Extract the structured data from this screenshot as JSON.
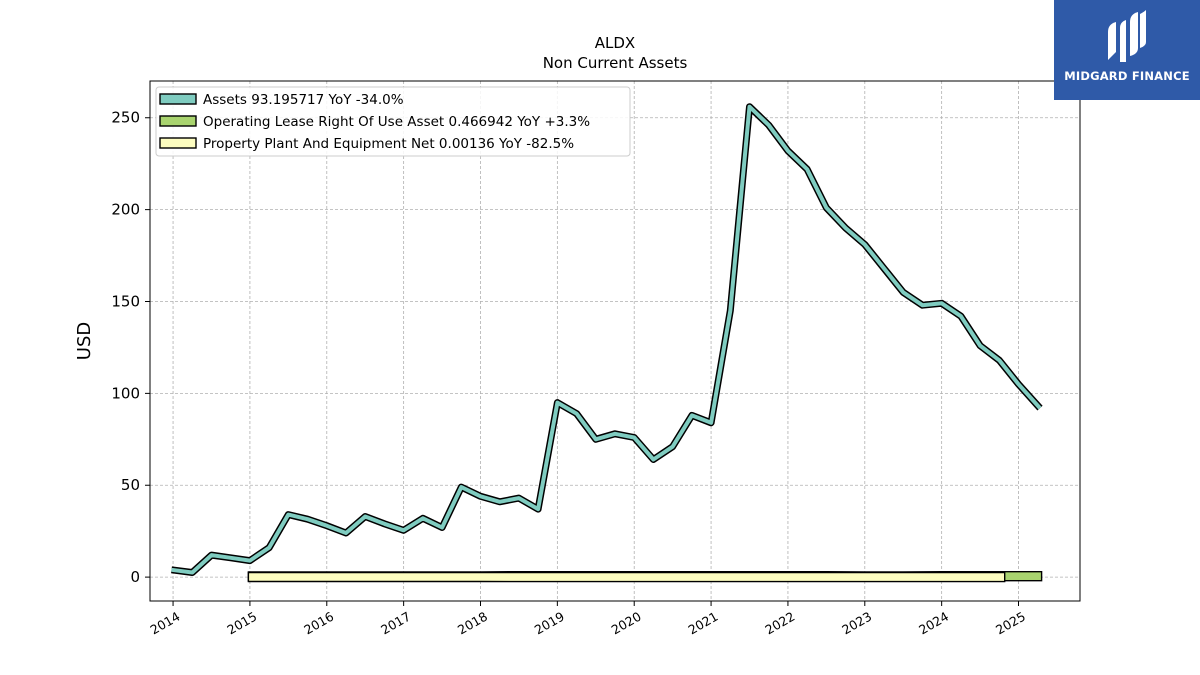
{
  "chart_data": {
    "type": "line",
    "title": "ALDX",
    "subtitle": "Non Current  Assets",
    "ylabel": "USD",
    "xlabel": "",
    "xlim": [
      2013.7,
      2025.8
    ],
    "ylim": [
      -13,
      270
    ],
    "yticks": [
      0,
      50,
      100,
      150,
      200,
      250
    ],
    "xticks": [
      2014,
      2015,
      2016,
      2017,
      2018,
      2019,
      2020,
      2021,
      2022,
      2023,
      2024,
      2025
    ],
    "grid": true,
    "legend_position": "top-left",
    "series": [
      {
        "name": "Assets  93.195717 YoY -34.0%",
        "color": "#7fccc0",
        "x": [
          2013.98,
          2014.25,
          2014.5,
          2014.75,
          2015.0,
          2015.25,
          2015.5,
          2015.75,
          2016.0,
          2016.25,
          2016.5,
          2016.75,
          2017.0,
          2017.25,
          2017.5,
          2017.75,
          2018.0,
          2018.25,
          2018.5,
          2018.75,
          2019.0,
          2019.25,
          2019.5,
          2019.75,
          2020.0,
          2020.25,
          2020.5,
          2020.75,
          2021.0,
          2021.25,
          2021.5,
          2021.75,
          2022.0,
          2022.25,
          2022.5,
          2022.75,
          2023.0,
          2023.25,
          2023.5,
          2023.75,
          2024.0,
          2024.25,
          2024.5,
          2024.75,
          2025.0,
          2025.28
        ],
        "values": [
          4,
          2.5,
          12,
          10.5,
          9,
          16,
          34,
          31.5,
          28,
          24,
          33,
          29,
          25.5,
          32,
          27,
          49,
          44,
          41,
          43,
          37,
          95,
          89,
          75,
          78,
          76,
          64,
          71,
          88,
          84,
          145,
          256,
          246,
          232,
          222,
          201,
          190,
          181,
          168,
          155,
          148,
          149,
          142,
          126,
          118,
          105,
          92
        ]
      },
      {
        "name": "Operating Lease Right Of Use Asset  0.466942 YoY +3.3%",
        "color": "#a9d46f",
        "x": [
          2014.98,
          2015.5,
          2016.0,
          2016.5,
          2017.0,
          2017.5,
          2018.0,
          2018.5,
          2019.0,
          2019.5,
          2020.0,
          2020.5,
          2021.0,
          2021.5,
          2022.0,
          2022.5,
          2023.0,
          2023.5,
          2024.0,
          2024.5,
          2024.82,
          2025.0,
          2025.3
        ],
        "values": [
          0.4,
          0.4,
          0.4,
          0.4,
          0.4,
          0.4,
          0.4,
          0.5,
          0.5,
          0.5,
          0.5,
          0.5,
          0.5,
          0.5,
          0.5,
          0.5,
          0.4,
          0.4,
          0.5,
          0.5,
          0.5,
          0.5,
          0.5
        ]
      },
      {
        "name": "Property Plant And Equipment Net  0.00136 YoY -82.5%",
        "color": "#fdfdc0",
        "x": [
          2014.98,
          2015.5,
          2016.0,
          2016.5,
          2017.0,
          2017.5,
          2018.0,
          2018.5,
          2019.0,
          2019.5,
          2020.0,
          2020.5,
          2021.0,
          2021.5,
          2022.0,
          2022.5,
          2023.0,
          2023.5,
          2024.0,
          2024.5,
          2024.82
        ],
        "values": [
          0.06,
          0.05,
          0.05,
          0.05,
          0.04,
          0.04,
          0.04,
          0.03,
          0.03,
          0.03,
          0.03,
          0.02,
          0.02,
          0.02,
          0.02,
          0.01,
          0.01,
          0.01,
          0.008,
          0.005,
          0.002
        ]
      }
    ]
  },
  "logo": {
    "text": "MIDGARD FINANCE",
    "background": "#2f5aa8",
    "icon": "midgard-logo-icon"
  }
}
